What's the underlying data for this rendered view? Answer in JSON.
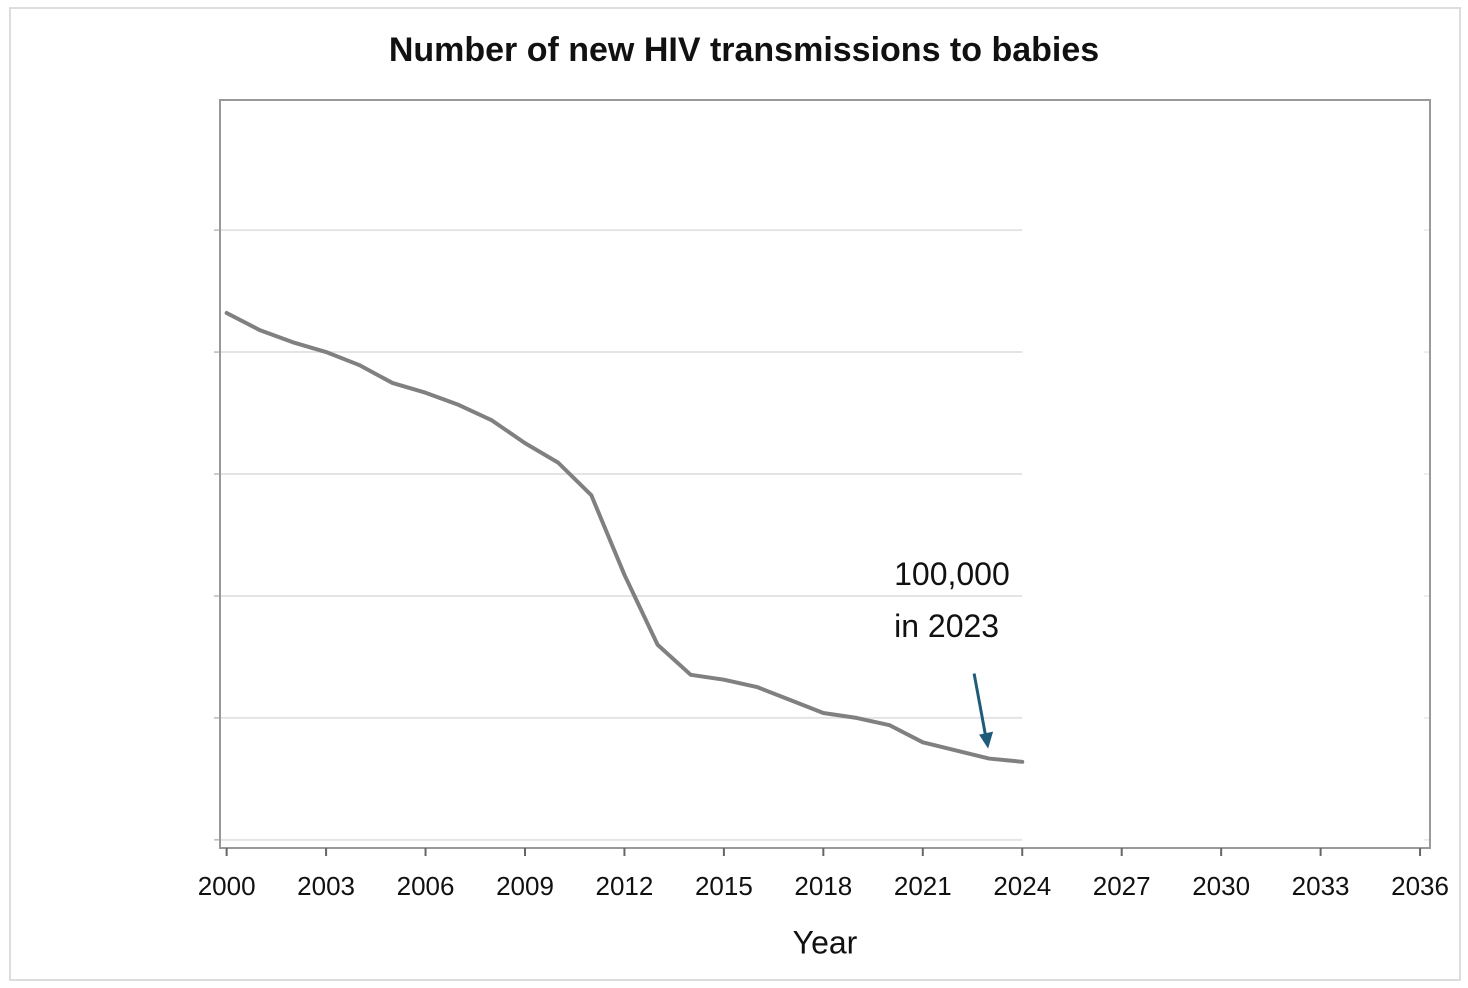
{
  "chart_data": {
    "type": "line",
    "title": "Number of new HIV transmissions to babies",
    "x_label": "Year",
    "x": [
      2000,
      2001,
      2002,
      2003,
      2004,
      2005,
      2006,
      2007,
      2008,
      2009,
      2010,
      2011,
      2012,
      2013,
      2014,
      2015,
      2016,
      2017,
      2018,
      2019,
      2020,
      2021,
      2022,
      2023,
      2024
    ],
    "series": [
      {
        "name": "New HIV transmissions to babies",
        "color": "#808080",
        "values": [
          648000,
          627000,
          612000,
          600000,
          584000,
          562000,
          550000,
          535000,
          516000,
          488000,
          464000,
          424000,
          326000,
          240000,
          203000,
          197000,
          188000,
          172000,
          156000,
          150000,
          141000,
          120000,
          110000,
          100000,
          96000
        ]
      }
    ],
    "xlim": [
      1999.8,
      2036.3
    ],
    "xticks": [
      2000,
      2003,
      2006,
      2009,
      2012,
      2015,
      2018,
      2021,
      2024,
      2027,
      2030,
      2033,
      2036
    ],
    "ylim": [
      -10000,
      910000
    ],
    "yticks": [
      0,
      150000,
      300000,
      450000,
      600000,
      750000
    ],
    "grid": true,
    "annotation": {
      "lines": [
        "100,000",
        "in 2023"
      ],
      "x": 2023,
      "value": 100000,
      "color": "#1f5c7a"
    }
  }
}
